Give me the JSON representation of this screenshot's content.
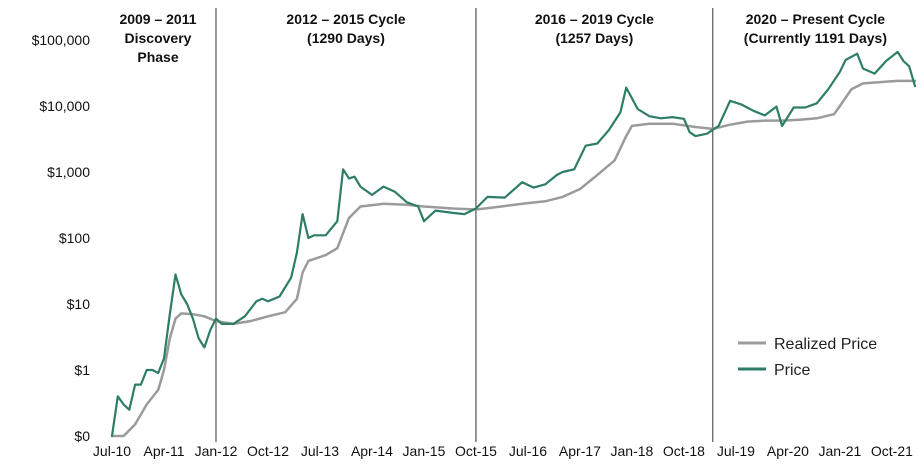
{
  "chart_data": {
    "type": "line",
    "title": "",
    "xlabel": "",
    "ylabel": "",
    "y_scale": "log",
    "grid": false,
    "legend_position": "bottom-right",
    "x_tick_labels": [
      "Jul-10",
      "Apr-11",
      "Jan-12",
      "Oct-12",
      "Jul-13",
      "Apr-14",
      "Jan-15",
      "Oct-15",
      "Jul-16",
      "Apr-17",
      "Jan-18",
      "Oct-18",
      "Jul-19",
      "Apr-20",
      "Jan-21",
      "Oct-21"
    ],
    "y_tick_labels": [
      "$0",
      "$1",
      "$10",
      "$100",
      "$1,000",
      "$10,000",
      "$100,000"
    ],
    "y_tick_values": [
      0.1,
      1,
      10,
      100,
      1000,
      10000,
      100000
    ],
    "ylim": [
      0.1,
      100000
    ],
    "xlim": [
      "2010-07",
      "2022-02"
    ],
    "phases": [
      {
        "lines": [
          "2009 – 2011",
          "Discovery",
          "Phase"
        ],
        "start": "2010-07",
        "divider_after": "2012-01"
      },
      {
        "lines": [
          "2012 – 2015 Cycle",
          "(1290 Days)"
        ],
        "start": "2012-01",
        "divider_after": "2015-10"
      },
      {
        "lines": [
          "2016 – 2019 Cycle",
          "(1257 Days)"
        ],
        "start": "2015-10",
        "divider_after": "2019-03"
      },
      {
        "lines": [
          "2020 – Present Cycle",
          "(Currently 1191 Days)"
        ],
        "start": "2019-03",
        "divider_after": ""
      }
    ],
    "series": [
      {
        "name": "Realized Price",
        "color": "#9b9b9b",
        "points": [
          [
            "2010-07",
            0.1
          ],
          [
            "2010-09",
            0.1
          ],
          [
            "2010-11",
            0.15
          ],
          [
            "2011-01",
            0.3
          ],
          [
            "2011-03",
            0.5
          ],
          [
            "2011-04",
            1.0
          ],
          [
            "2011-05",
            3.0
          ],
          [
            "2011-06",
            6.0
          ],
          [
            "2011-07",
            7.2
          ],
          [
            "2011-09",
            7.0
          ],
          [
            "2011-11",
            6.5
          ],
          [
            "2012-01",
            5.5
          ],
          [
            "2012-04",
            5.0
          ],
          [
            "2012-07",
            5.5
          ],
          [
            "2012-10",
            6.5
          ],
          [
            "2013-01",
            7.5
          ],
          [
            "2013-03",
            12
          ],
          [
            "2013-04",
            30
          ],
          [
            "2013-05",
            45
          ],
          [
            "2013-08",
            55
          ],
          [
            "2013-10",
            70
          ],
          [
            "2013-12",
            200
          ],
          [
            "2014-02",
            300
          ],
          [
            "2014-06",
            330
          ],
          [
            "2014-10",
            320
          ],
          [
            "2015-01",
            300
          ],
          [
            "2015-06",
            280
          ],
          [
            "2015-10",
            270
          ],
          [
            "2016-01",
            290
          ],
          [
            "2016-06",
            330
          ],
          [
            "2016-10",
            360
          ],
          [
            "2017-01",
            420
          ],
          [
            "2017-04",
            550
          ],
          [
            "2017-07",
            900
          ],
          [
            "2017-10",
            1500
          ],
          [
            "2017-12",
            3500
          ],
          [
            "2018-01",
            5000
          ],
          [
            "2018-04",
            5400
          ],
          [
            "2018-08",
            5400
          ],
          [
            "2018-12",
            4800
          ],
          [
            "2019-03",
            4500
          ],
          [
            "2019-06",
            5200
          ],
          [
            "2019-09",
            5800
          ],
          [
            "2019-12",
            6000
          ],
          [
            "2020-03",
            6000
          ],
          [
            "2020-06",
            6200
          ],
          [
            "2020-09",
            6500
          ],
          [
            "2020-12",
            7500
          ],
          [
            "2021-01",
            10000
          ],
          [
            "2021-03",
            18000
          ],
          [
            "2021-05",
            22000
          ],
          [
            "2021-08",
            23000
          ],
          [
            "2021-11",
            24000
          ],
          [
            "2022-02",
            24000
          ]
        ]
      },
      {
        "name": "Price",
        "color": "#2e7d67",
        "points": [
          [
            "2010-07",
            0.1
          ],
          [
            "2010-08",
            0.4
          ],
          [
            "2010-09",
            0.3
          ],
          [
            "2010-10",
            0.25
          ],
          [
            "2010-11",
            0.6
          ],
          [
            "2010-12",
            0.6
          ],
          [
            "2011-01",
            1.0
          ],
          [
            "2011-02",
            1.0
          ],
          [
            "2011-03",
            0.9
          ],
          [
            "2011-04",
            1.5
          ],
          [
            "2011-05",
            7
          ],
          [
            "2011-06",
            28
          ],
          [
            "2011-07",
            14
          ],
          [
            "2011-08",
            10
          ],
          [
            "2011-09",
            6
          ],
          [
            "2011-10",
            3
          ],
          [
            "2011-11",
            2.2
          ],
          [
            "2011-12",
            4
          ],
          [
            "2012-01",
            6
          ],
          [
            "2012-02",
            5
          ],
          [
            "2012-04",
            5
          ],
          [
            "2012-06",
            6.5
          ],
          [
            "2012-08",
            11
          ],
          [
            "2012-09",
            12
          ],
          [
            "2012-10",
            11
          ],
          [
            "2012-12",
            13
          ],
          [
            "2013-02",
            25
          ],
          [
            "2013-03",
            60
          ],
          [
            "2013-04",
            230
          ],
          [
            "2013-05",
            100
          ],
          [
            "2013-06",
            110
          ],
          [
            "2013-08",
            110
          ],
          [
            "2013-10",
            180
          ],
          [
            "2013-11",
            1100
          ],
          [
            "2013-12",
            800
          ],
          [
            "2014-01",
            850
          ],
          [
            "2014-02",
            600
          ],
          [
            "2014-04",
            450
          ],
          [
            "2014-06",
            600
          ],
          [
            "2014-08",
            500
          ],
          [
            "2014-10",
            350
          ],
          [
            "2014-12",
            300
          ],
          [
            "2015-01",
            180
          ],
          [
            "2015-03",
            260
          ],
          [
            "2015-06",
            240
          ],
          [
            "2015-08",
            230
          ],
          [
            "2015-10",
            280
          ],
          [
            "2015-12",
            420
          ],
          [
            "2016-03",
            410
          ],
          [
            "2016-06",
            700
          ],
          [
            "2016-08",
            580
          ],
          [
            "2016-10",
            650
          ],
          [
            "2016-12",
            900
          ],
          [
            "2017-01",
            1000
          ],
          [
            "2017-03",
            1100
          ],
          [
            "2017-05",
            2500
          ],
          [
            "2017-07",
            2700
          ],
          [
            "2017-09",
            4300
          ],
          [
            "2017-11",
            8000
          ],
          [
            "2017-12",
            19000
          ],
          [
            "2018-02",
            9000
          ],
          [
            "2018-04",
            7000
          ],
          [
            "2018-06",
            6500
          ],
          [
            "2018-08",
            6800
          ],
          [
            "2018-10",
            6400
          ],
          [
            "2018-11",
            4000
          ],
          [
            "2018-12",
            3500
          ],
          [
            "2019-02",
            3800
          ],
          [
            "2019-04",
            5000
          ],
          [
            "2019-06",
            12000
          ],
          [
            "2019-08",
            10500
          ],
          [
            "2019-10",
            8500
          ],
          [
            "2019-12",
            7200
          ],
          [
            "2020-02",
            9800
          ],
          [
            "2020-03",
            5000
          ],
          [
            "2020-05",
            9500
          ],
          [
            "2020-07",
            9500
          ],
          [
            "2020-09",
            11000
          ],
          [
            "2020-11",
            18000
          ],
          [
            "2021-01",
            33000
          ],
          [
            "2021-02",
            50000
          ],
          [
            "2021-04",
            62000
          ],
          [
            "2021-05",
            37000
          ],
          [
            "2021-07",
            31000
          ],
          [
            "2021-09",
            48000
          ],
          [
            "2021-11",
            66000
          ],
          [
            "2021-12",
            48000
          ],
          [
            "2022-01",
            40000
          ],
          [
            "2022-02",
            20000
          ]
        ]
      }
    ]
  }
}
